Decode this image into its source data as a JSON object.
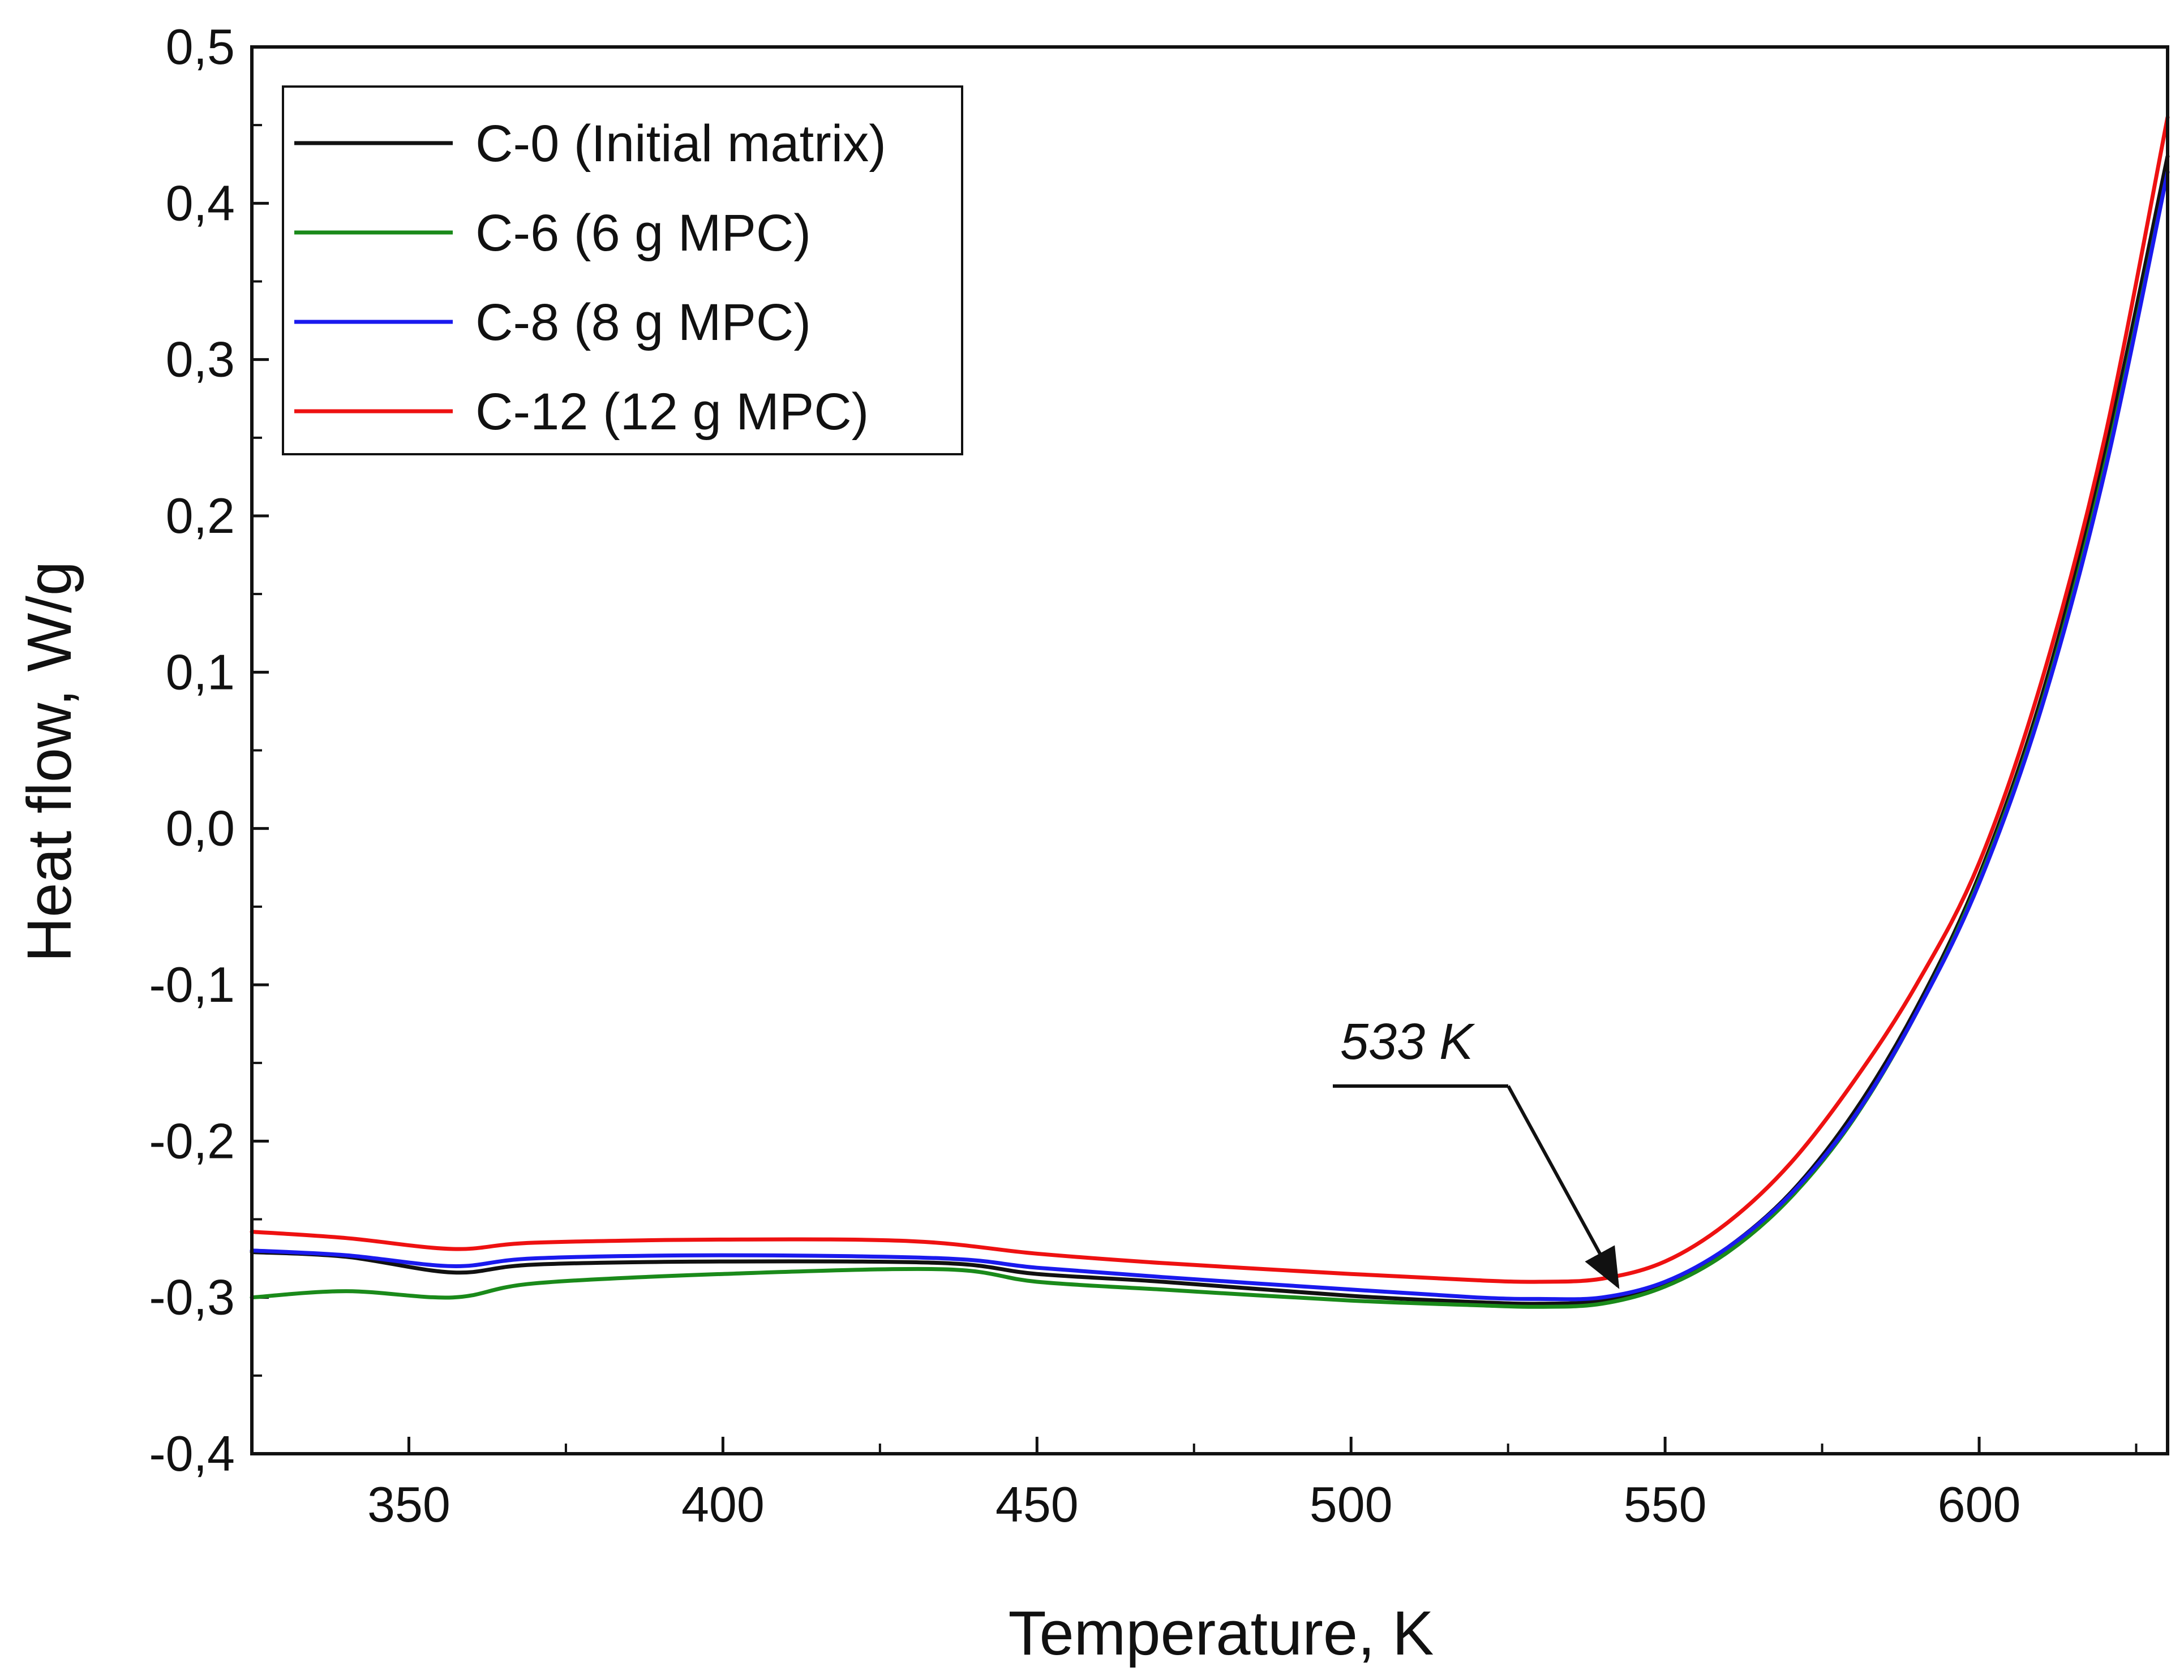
{
  "chart_data": {
    "type": "line",
    "title": "",
    "xlabel": "Temperature, K",
    "ylabel": "Heat flow, W/g",
    "xlim": [
      325,
      630
    ],
    "ylim": [
      -0.4,
      0.5
    ],
    "x_ticks": [
      350,
      400,
      450,
      500,
      550,
      600
    ],
    "x_tick_labels": [
      "350",
      "400",
      "450",
      "500",
      "550",
      "600"
    ],
    "y_ticks": [
      -0.4,
      -0.3,
      -0.2,
      -0.1,
      0.0,
      0.1,
      0.2,
      0.3,
      0.4,
      0.5
    ],
    "y_tick_labels": [
      "-0,4",
      "-0,3",
      "-0,2",
      "-0,1",
      "0,0",
      "0,1",
      "0,2",
      "0,3",
      "0,4",
      "0,5"
    ],
    "grid": false,
    "legend_position": "top-left",
    "series": [
      {
        "name": "C-0 (Initial matrix)",
        "color": "#111111",
        "x": [
          325,
          340,
          357,
          370,
          400,
          435,
          450,
          470,
          500,
          520,
          530,
          540,
          550,
          560,
          570,
          580,
          590,
          600,
          610,
          620,
          630
        ],
        "y": [
          -0.271,
          -0.274,
          -0.284,
          -0.279,
          -0.277,
          -0.278,
          -0.285,
          -0.29,
          -0.299,
          -0.303,
          -0.304,
          -0.302,
          -0.291,
          -0.268,
          -0.233,
          -0.182,
          -0.115,
          -0.03,
          0.085,
          0.24,
          0.43
        ]
      },
      {
        "name": "C-6 (6 g MPC)",
        "color": "#1a8a1a",
        "x": [
          325,
          340,
          357,
          370,
          400,
          435,
          450,
          470,
          500,
          520,
          530,
          540,
          550,
          560,
          570,
          580,
          590,
          600,
          610,
          620,
          630
        ],
        "y": [
          -0.3,
          -0.296,
          -0.3,
          -0.291,
          -0.285,
          -0.282,
          -0.29,
          -0.295,
          -0.302,
          -0.305,
          -0.306,
          -0.304,
          -0.293,
          -0.271,
          -0.236,
          -0.186,
          -0.118,
          -0.033,
          0.08,
          0.232,
          0.42
        ]
      },
      {
        "name": "C-8 (8 g MPC)",
        "color": "#1a1aee",
        "x": [
          325,
          340,
          357,
          370,
          400,
          435,
          450,
          470,
          500,
          520,
          530,
          540,
          550,
          560,
          570,
          580,
          590,
          600,
          610,
          620,
          630
        ],
        "y": [
          -0.27,
          -0.273,
          -0.28,
          -0.275,
          -0.273,
          -0.275,
          -0.281,
          -0.287,
          -0.295,
          -0.3,
          -0.301,
          -0.3,
          -0.29,
          -0.268,
          -0.234,
          -0.185,
          -0.118,
          -0.035,
          0.078,
          0.228,
          0.42
        ]
      },
      {
        "name": "C-12 (12 g MPC)",
        "color": "#ee1111",
        "x": [
          325,
          340,
          357,
          370,
          400,
          430,
          450,
          470,
          500,
          520,
          530,
          540,
          550,
          560,
          570,
          580,
          590,
          600,
          610,
          620,
          630
        ],
        "y": [
          -0.258,
          -0.262,
          -0.269,
          -0.265,
          -0.263,
          -0.264,
          -0.272,
          -0.278,
          -0.285,
          -0.289,
          -0.29,
          -0.288,
          -0.277,
          -0.252,
          -0.214,
          -0.162,
          -0.1,
          -0.022,
          0.095,
          0.25,
          0.455
        ]
      }
    ],
    "annotations": [
      {
        "text": "533 K",
        "arrow_to_x": 543,
        "arrow_to_y": -0.3
      }
    ]
  }
}
